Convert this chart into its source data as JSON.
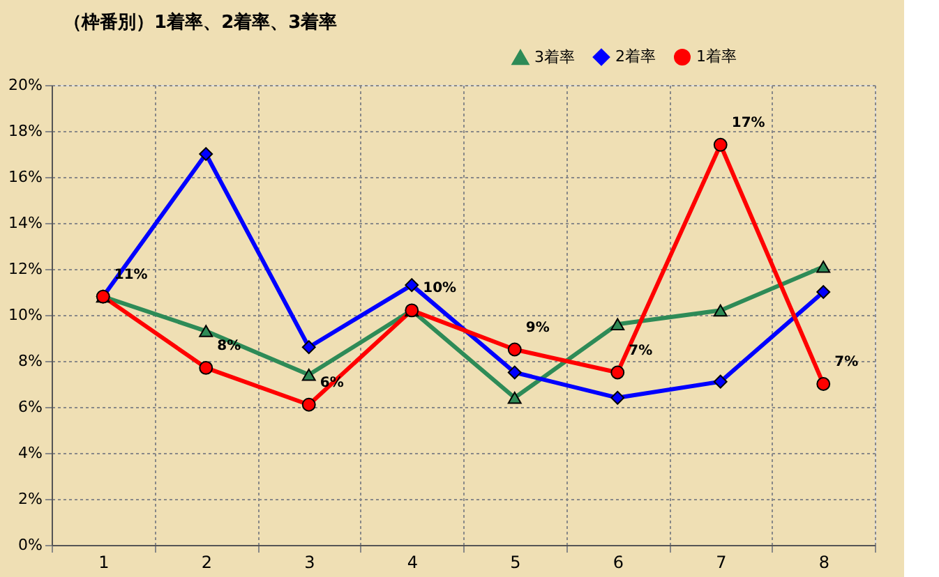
{
  "chart_data": {
    "type": "line",
    "title": "（枠番別）1着率、2着率、3着率",
    "categories": [
      "1",
      "2",
      "3",
      "4",
      "5",
      "6",
      "7",
      "8"
    ],
    "series": [
      {
        "name": "3着率",
        "color": "#2e8b57",
        "marker": "triangle",
        "values": [
          10.8,
          9.3,
          7.4,
          10.2,
          6.4,
          9.6,
          10.2,
          12.1
        ]
      },
      {
        "name": "2着率",
        "color": "#0000ff",
        "marker": "diamond",
        "values": [
          10.8,
          17.0,
          8.6,
          11.3,
          7.5,
          6.4,
          7.1,
          11.0
        ]
      },
      {
        "name": "1着率",
        "color": "#ff0000",
        "marker": "circle",
        "values": [
          10.8,
          7.7,
          6.1,
          10.2,
          8.5,
          7.5,
          17.4,
          7.0
        ],
        "value_labels": [
          "11%",
          "8%",
          "6%",
          "10%",
          "9%",
          "7%",
          "17%",
          "7%"
        ]
      }
    ],
    "ylim": [
      0,
      20
    ],
    "yticks": [
      {
        "value": 0,
        "label": "0%"
      },
      {
        "value": 2,
        "label": "2%"
      },
      {
        "value": 4,
        "label": "4%"
      },
      {
        "value": 6,
        "label": "6%"
      },
      {
        "value": 8,
        "label": "8%"
      },
      {
        "value": 10,
        "label": "10%"
      },
      {
        "value": 12,
        "label": "12%"
      },
      {
        "value": 14,
        "label": "14%"
      },
      {
        "value": 16,
        "label": "16%"
      },
      {
        "value": 18,
        "label": "18%"
      },
      {
        "value": 20,
        "label": "20%"
      }
    ],
    "grid": true,
    "legend": "top right",
    "line_style": "solid"
  }
}
